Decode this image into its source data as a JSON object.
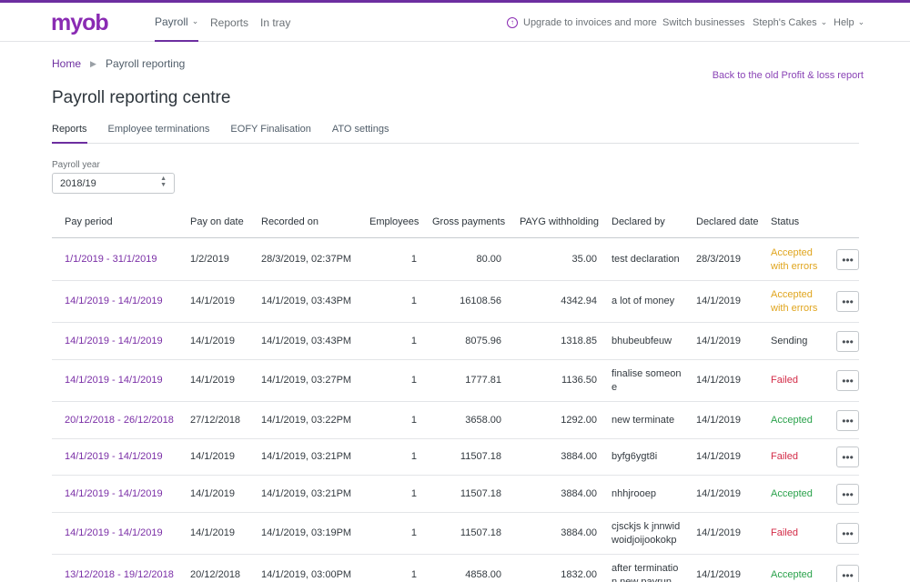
{
  "nav": {
    "logo": "myob",
    "payroll": "Payroll",
    "reports": "Reports",
    "in_tray": "In tray",
    "upgrade": "Upgrade to invoices and more",
    "switch": "Switch businesses",
    "business": "Steph's Cakes",
    "help": "Help"
  },
  "breadcrumb": {
    "home": "Home",
    "current": "Payroll reporting"
  },
  "back_link": "Back to the old Profit & loss report",
  "title": "Payroll reporting centre",
  "tabs": [
    "Reports",
    "Employee terminations",
    "EOFY Finalisation",
    "ATO settings"
  ],
  "payroll_year": {
    "label": "Payroll year",
    "value": "2018/19"
  },
  "table": {
    "headers": [
      "Pay period",
      "Pay on date",
      "Recorded on",
      "Employees",
      "Gross payments",
      "PAYG withholding",
      "Declared by",
      "Declared date",
      "Status"
    ],
    "rows": [
      {
        "period": "1/1/2019 - 31/1/2019",
        "pay_on": "1/2/2019",
        "recorded": "28/3/2019, 02:37PM",
        "employees": "1",
        "gross": "80.00",
        "payg": "35.00",
        "declared_by": [
          "test declaration"
        ],
        "declared_date": "28/3/2019",
        "status": [
          "Accepted",
          "with errors"
        ],
        "status_kind": "warn"
      },
      {
        "period": "14/1/2019 - 14/1/2019",
        "pay_on": "14/1/2019",
        "recorded": "14/1/2019, 03:43PM",
        "employees": "1",
        "gross": "16108.56",
        "payg": "4342.94",
        "declared_by": [
          "a lot of money"
        ],
        "declared_date": "14/1/2019",
        "status": [
          "Accepted",
          "with errors"
        ],
        "status_kind": "warn"
      },
      {
        "period": "14/1/2019 - 14/1/2019",
        "pay_on": "14/1/2019",
        "recorded": "14/1/2019, 03:43PM",
        "employees": "1",
        "gross": "8075.96",
        "payg": "1318.85",
        "declared_by": [
          "bhubeubfeuw"
        ],
        "declared_date": "14/1/2019",
        "status": [
          "Sending"
        ],
        "status_kind": "neutral"
      },
      {
        "period": "14/1/2019 - 14/1/2019",
        "pay_on": "14/1/2019",
        "recorded": "14/1/2019, 03:27PM",
        "employees": "1",
        "gross": "1777.81",
        "payg": "1136.50",
        "declared_by": [
          "finalise someon",
          "e"
        ],
        "declared_date": "14/1/2019",
        "status": [
          "Failed"
        ],
        "status_kind": "fail"
      },
      {
        "period": "20/12/2018 - 26/12/2018",
        "pay_on": "27/12/2018",
        "recorded": "14/1/2019, 03:22PM",
        "employees": "1",
        "gross": "3658.00",
        "payg": "1292.00",
        "declared_by": [
          "new terminate"
        ],
        "declared_date": "14/1/2019",
        "status": [
          "Accepted"
        ],
        "status_kind": "ok"
      },
      {
        "period": "14/1/2019 - 14/1/2019",
        "pay_on": "14/1/2019",
        "recorded": "14/1/2019, 03:21PM",
        "employees": "1",
        "gross": "11507.18",
        "payg": "3884.00",
        "declared_by": [
          "byfg6ygt8i"
        ],
        "declared_date": "14/1/2019",
        "status": [
          "Failed"
        ],
        "status_kind": "fail"
      },
      {
        "period": "14/1/2019 - 14/1/2019",
        "pay_on": "14/1/2019",
        "recorded": "14/1/2019, 03:21PM",
        "employees": "1",
        "gross": "11507.18",
        "payg": "3884.00",
        "declared_by": [
          "nhhjrooep"
        ],
        "declared_date": "14/1/2019",
        "status": [
          "Accepted"
        ],
        "status_kind": "ok"
      },
      {
        "period": "14/1/2019 - 14/1/2019",
        "pay_on": "14/1/2019",
        "recorded": "14/1/2019, 03:19PM",
        "employees": "1",
        "gross": "11507.18",
        "payg": "3884.00",
        "declared_by": [
          "cjsckjs k jnnwid",
          "woidjoijookokp"
        ],
        "declared_date": "14/1/2019",
        "status": [
          "Failed"
        ],
        "status_kind": "fail"
      },
      {
        "period": "13/12/2018 - 19/12/2018",
        "pay_on": "20/12/2018",
        "recorded": "14/1/2019, 03:00PM",
        "employees": "1",
        "gross": "4858.00",
        "payg": "1832.00",
        "declared_by": [
          "after terminatio",
          "n new payrun"
        ],
        "declared_date": "14/1/2019",
        "status": [
          "Accepted"
        ],
        "status_kind": "ok"
      }
    ],
    "more_label": "•••"
  },
  "colors": {
    "brand": "#8a2bb3",
    "link": "#7a2ea6",
    "warn": "#e0a51e",
    "fail": "#d32b47",
    "ok": "#2aa24b"
  },
  "icons": {
    "nav_dropdown": "chevron-down-icon",
    "upgrade": "arrow-up-circle-icon",
    "breadcrumb_sep": "triangle-right-icon",
    "select": "up-down-chevron-icon",
    "row_menu": "ellipsis-icon"
  }
}
